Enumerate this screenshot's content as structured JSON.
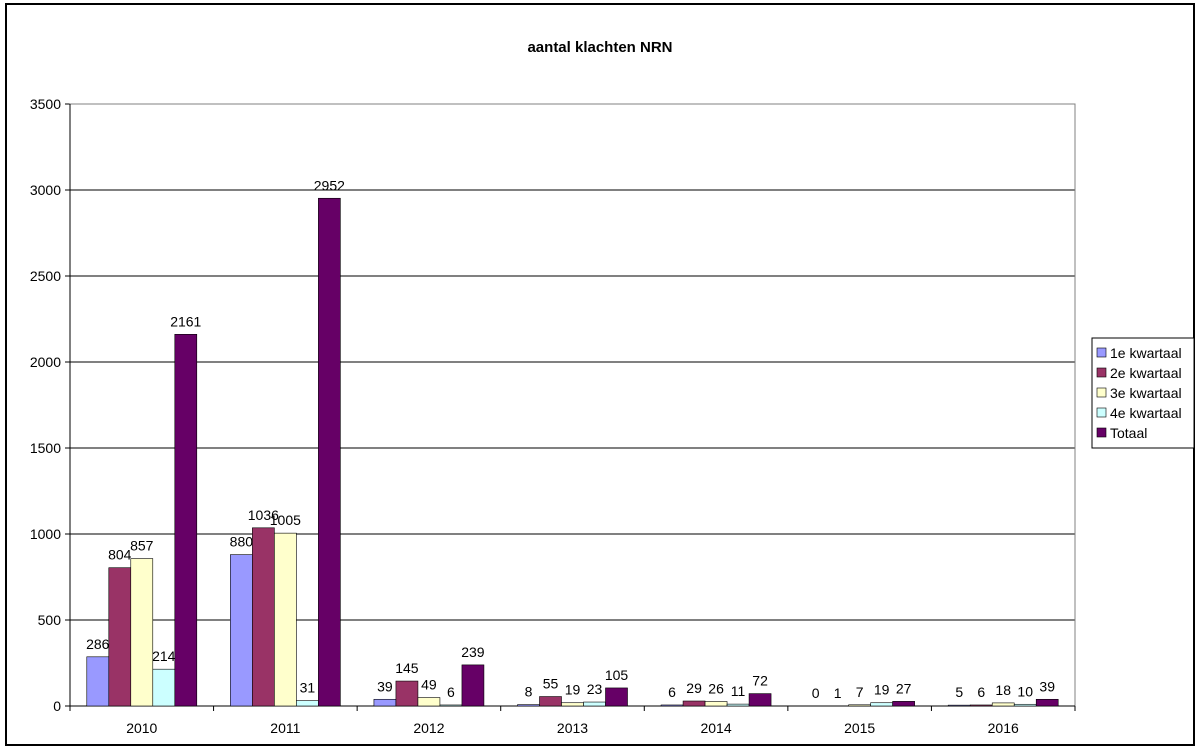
{
  "chart_data": {
    "type": "bar",
    "title": "aantal klachten NRN",
    "xlabel": "",
    "ylabel": "",
    "categories": [
      "2010",
      "2011",
      "2012",
      "2013",
      "2014",
      "2015",
      "2016"
    ],
    "ylim": [
      0,
      3500
    ],
    "yticks": [
      0,
      500,
      1000,
      1500,
      2000,
      2500,
      3000,
      3500
    ],
    "grid": true,
    "legend_position": "right",
    "series": [
      {
        "name": "1e kwartaal",
        "color": "#9999ff",
        "values": [
          286,
          880,
          39,
          8,
          6,
          0,
          5
        ]
      },
      {
        "name": "2e kwartaal",
        "color": "#993366",
        "values": [
          804,
          1036,
          145,
          55,
          29,
          1,
          6
        ]
      },
      {
        "name": "3e kwartaal",
        "color": "#ffffcc",
        "values": [
          857,
          1005,
          49,
          19,
          26,
          7,
          18
        ]
      },
      {
        "name": "4e kwartaal",
        "color": "#ccffff",
        "values": [
          214,
          31,
          6,
          23,
          11,
          19,
          10
        ]
      },
      {
        "name": "Totaal",
        "color": "#660066",
        "values": [
          2161,
          2952,
          239,
          105,
          72,
          27,
          39
        ]
      }
    ]
  }
}
